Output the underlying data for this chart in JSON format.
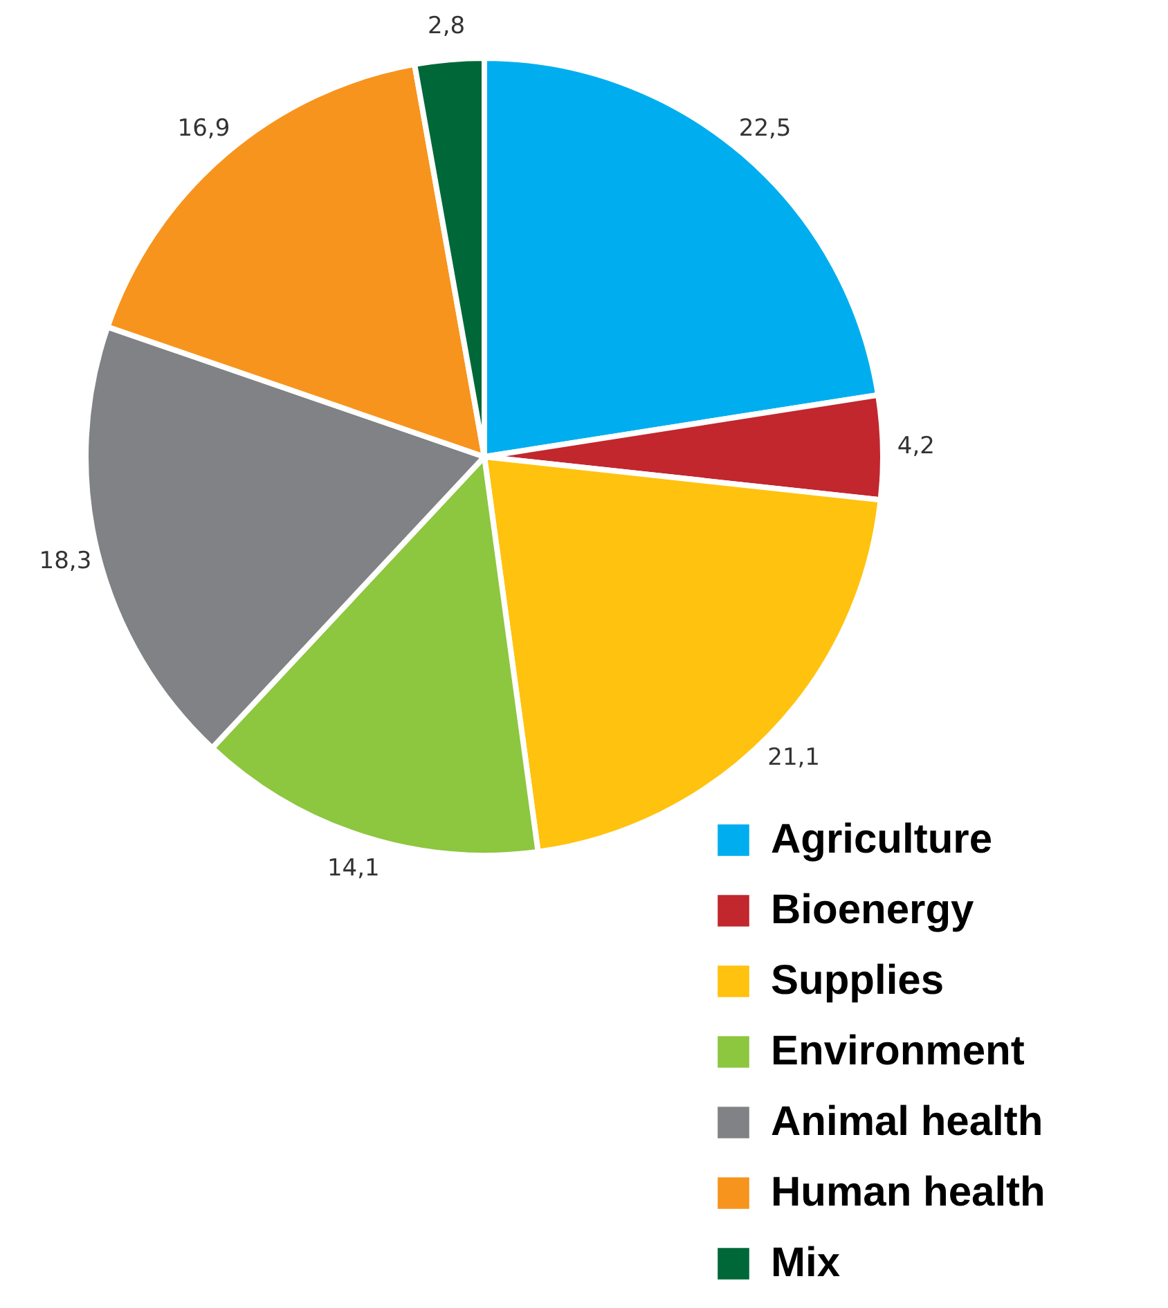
{
  "chart_data": {
    "type": "pie",
    "categories": [
      "Agriculture",
      "Bioenergy",
      "Supplies",
      "Environment",
      "Animal health",
      "Human health",
      "Mix"
    ],
    "values": [
      22.5,
      4.2,
      21.1,
      14.1,
      18.3,
      16.9,
      2.8
    ],
    "value_labels": [
      "22,5",
      "4,2",
      "21,1",
      "14,1",
      "18,3",
      "16,9",
      "2,8"
    ],
    "colors": [
      "#00aeef",
      "#c1272d",
      "#ffc20e",
      "#8dc63f",
      "#808285",
      "#f7941d",
      "#006838"
    ],
    "legend": "bottom right"
  }
}
